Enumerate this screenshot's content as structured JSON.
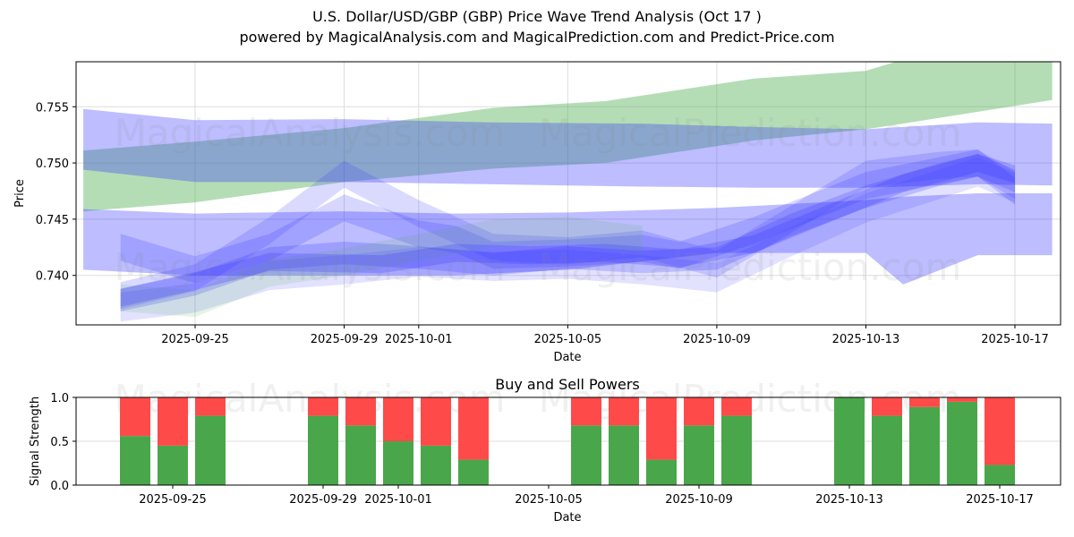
{
  "header": {
    "title": "U.S. Dollar/USD/GBP (GBP) Price Wave Trend Analysis (Oct 17 )",
    "subtitle": "powered by MagicalAnalysis.com and MagicalPrediction.com and Predict-Price.com"
  },
  "watermarks": [
    "MagicalAnalysis.com",
    "MagicalPrediction.com"
  ],
  "colors": {
    "green_band": "#4caf50",
    "blue_band": "#3333ff",
    "buy": "#4aa64a",
    "sell": "#ff4a4a",
    "grid": "#dddddd"
  },
  "chart_data": [
    {
      "type": "area",
      "title": "",
      "xlabel": "Date",
      "ylabel": "Price",
      "ylim": [
        0.7356,
        0.759
      ],
      "xlim": [
        "2025-09-22",
        "2025-10-18"
      ],
      "grid": true,
      "x_ticks": [
        "2025-09-25",
        "2025-09-29",
        "2025-10-01",
        "2025-10-05",
        "2025-10-09",
        "2025-10-13",
        "2025-10-17"
      ],
      "y_ticks": [
        0.74,
        0.745,
        0.75,
        0.755
      ],
      "y_tick_labels": [
        "0.740",
        "0.745",
        "0.750",
        "0.755"
      ],
      "bands": [
        {
          "name": "green-trend-band",
          "color": "green",
          "opacity": 0.42,
          "x": [
            "2025-09-22",
            "2025-09-25",
            "2025-09-29",
            "2025-10-03",
            "2025-10-06",
            "2025-10-10",
            "2025-10-13",
            "2025-10-14",
            "2025-10-18"
          ],
          "upper": [
            0.7511,
            0.7519,
            0.7531,
            0.7549,
            0.7555,
            0.7575,
            0.7582,
            0.7592,
            0.759
          ],
          "lower": [
            0.7457,
            0.7465,
            0.7483,
            0.7495,
            0.75,
            0.752,
            0.753,
            0.7535,
            0.7556
          ]
        },
        {
          "name": "blue-upper-band",
          "color": "blue",
          "opacity": 0.32,
          "x": [
            "2025-09-22",
            "2025-09-25",
            "2025-09-29",
            "2025-10-03",
            "2025-10-07",
            "2025-10-10",
            "2025-10-13",
            "2025-10-16",
            "2025-10-18"
          ],
          "upper": [
            0.7548,
            0.7538,
            0.7539,
            0.7536,
            0.7535,
            0.7532,
            0.753,
            0.7536,
            0.7535
          ],
          "lower": [
            0.7494,
            0.7483,
            0.7483,
            0.7481,
            0.7479,
            0.7478,
            0.7478,
            0.7481,
            0.748
          ]
        },
        {
          "name": "blue-lower-band",
          "color": "blue",
          "opacity": 0.32,
          "x": [
            "2025-09-22",
            "2025-09-25",
            "2025-09-29",
            "2025-10-02",
            "2025-10-05",
            "2025-10-09",
            "2025-10-13",
            "2025-10-14",
            "2025-10-16",
            "2025-10-18"
          ],
          "upper": [
            0.7459,
            0.7455,
            0.7457,
            0.7455,
            0.7456,
            0.746,
            0.7467,
            0.747,
            0.7473,
            0.7473
          ],
          "lower": [
            0.7405,
            0.74,
            0.74,
            0.74,
            0.7405,
            0.742,
            0.742,
            0.7392,
            0.7418,
            0.7418
          ]
        },
        {
          "name": "wave-band-1",
          "color": "blue",
          "opacity": 0.22,
          "x": [
            "2025-09-23",
            "2025-09-25",
            "2025-09-27",
            "2025-09-29",
            "2025-10-01",
            "2025-10-03",
            "2025-10-05",
            "2025-10-07",
            "2025-10-09",
            "2025-10-11",
            "2025-10-13",
            "2025-10-15",
            "2025-10-16",
            "2025-10-17"
          ],
          "center": [
            0.7378,
            0.7392,
            0.7415,
            0.742,
            0.7416,
            0.741,
            0.7416,
            0.7412,
            0.7415,
            0.7445,
            0.747,
            0.749,
            0.7498,
            0.7484
          ],
          "halfwidth": [
            0.001,
            0.001,
            0.001,
            0.001,
            0.001,
            0.001,
            0.001,
            0.001,
            0.001,
            0.001,
            0.001,
            0.001,
            0.001,
            0.001
          ]
        },
        {
          "name": "wave-band-2",
          "color": "blue",
          "opacity": 0.2,
          "x": [
            "2025-09-23",
            "2025-09-25",
            "2025-09-27",
            "2025-09-29",
            "2025-10-01",
            "2025-10-02",
            "2025-10-03",
            "2025-10-05",
            "2025-10-07",
            "2025-10-08",
            "2025-10-10",
            "2025-10-13",
            "2025-10-16",
            "2025-10-17"
          ],
          "center": [
            0.7425,
            0.7405,
            0.7425,
            0.746,
            0.7437,
            0.7432,
            0.7418,
            0.742,
            0.7424,
            0.7418,
            0.744,
            0.748,
            0.75,
            0.7475
          ],
          "halfwidth": [
            0.0012,
            0.0012,
            0.0012,
            0.0012,
            0.0012,
            0.0012,
            0.0012,
            0.0012,
            0.0012,
            0.0012,
            0.0012,
            0.0012,
            0.0012,
            0.0012
          ]
        },
        {
          "name": "wave-band-3",
          "color": "blue",
          "opacity": 0.18,
          "x": [
            "2025-09-23",
            "2025-09-25",
            "2025-09-27",
            "2025-09-29",
            "2025-10-01",
            "2025-10-03",
            "2025-10-05",
            "2025-10-07",
            "2025-10-09",
            "2025-10-11",
            "2025-10-13",
            "2025-10-15",
            "2025-10-16",
            "2025-10-17"
          ],
          "center": [
            0.7382,
            0.7398,
            0.744,
            0.749,
            0.7455,
            0.7425,
            0.7422,
            0.7428,
            0.741,
            0.745,
            0.749,
            0.7498,
            0.75,
            0.748
          ],
          "halfwidth": [
            0.0012,
            0.0012,
            0.0012,
            0.0012,
            0.0012,
            0.0012,
            0.0012,
            0.0012,
            0.0012,
            0.0012,
            0.0012,
            0.0012,
            0.0012,
            0.0012
          ]
        },
        {
          "name": "wave-band-4",
          "color": "blue",
          "opacity": 0.14,
          "x": [
            "2025-09-23",
            "2025-09-25",
            "2025-09-27",
            "2025-09-29",
            "2025-10-01",
            "2025-10-03",
            "2025-10-05",
            "2025-10-07",
            "2025-10-09",
            "2025-10-11",
            "2025-10-13",
            "2025-10-16",
            "2025-10-17"
          ],
          "center": [
            0.7372,
            0.738,
            0.74,
            0.7405,
            0.7412,
            0.7408,
            0.741,
            0.7405,
            0.7398,
            0.743,
            0.746,
            0.7492,
            0.7478
          ],
          "halfwidth": [
            0.0013,
            0.0013,
            0.0013,
            0.0013,
            0.0013,
            0.0013,
            0.0013,
            0.0013,
            0.0013,
            0.0013,
            0.0013,
            0.0013,
            0.0013
          ]
        },
        {
          "name": "wave-band-green",
          "color": "green",
          "opacity": 0.14,
          "x": [
            "2025-09-23",
            "2025-09-25",
            "2025-09-27",
            "2025-09-29",
            "2025-10-01",
            "2025-10-03",
            "2025-10-05",
            "2025-10-07"
          ],
          "center": [
            0.738,
            0.7375,
            0.7402,
            0.7412,
            0.7425,
            0.7438,
            0.744,
            0.7432
          ],
          "halfwidth": [
            0.0012,
            0.0012,
            0.0012,
            0.0012,
            0.0012,
            0.0012,
            0.0012,
            0.0012
          ]
        },
        {
          "name": "wave-band-5",
          "color": "blue",
          "opacity": 0.24,
          "x": [
            "2025-09-23",
            "2025-09-25",
            "2025-09-27",
            "2025-09-30",
            "2025-10-02",
            "2025-10-04",
            "2025-10-06",
            "2025-10-08",
            "2025-10-10",
            "2025-10-12",
            "2025-10-14",
            "2025-10-16",
            "2025-10-17"
          ],
          "center": [
            0.738,
            0.7395,
            0.7412,
            0.741,
            0.742,
            0.7418,
            0.742,
            0.7415,
            0.7428,
            0.7455,
            0.7482,
            0.75,
            0.749
          ],
          "halfwidth": [
            0.0008,
            0.0008,
            0.0008,
            0.0008,
            0.0008,
            0.0008,
            0.0008,
            0.0008,
            0.0008,
            0.0008,
            0.0008,
            0.0008,
            0.0008
          ]
        }
      ]
    },
    {
      "type": "bar",
      "title": "Buy and Sell Powers",
      "xlabel": "Date",
      "ylabel": "Signal Strength",
      "ylim": [
        0,
        1
      ],
      "xlim": [
        "2025-09-22",
        "2025-10-18"
      ],
      "grid": true,
      "x_ticks": [
        "2025-09-25",
        "2025-09-29",
        "2025-10-01",
        "2025-10-05",
        "2025-10-09",
        "2025-10-13",
        "2025-10-17"
      ],
      "y_ticks": [
        0.0,
        0.5,
        1.0
      ],
      "y_tick_labels": [
        "0.0",
        "0.5",
        "1.0"
      ],
      "categories": [
        "2025-09-24",
        "2025-09-25",
        "2025-09-26",
        "2025-09-29",
        "2025-09-30",
        "2025-10-01",
        "2025-10-02",
        "2025-10-03",
        "2025-10-06",
        "2025-10-07",
        "2025-10-08",
        "2025-10-09",
        "2025-10-10",
        "2025-10-13",
        "2025-10-14",
        "2025-10-15",
        "2025-10-16",
        "2025-10-17"
      ],
      "series": [
        {
          "name": "Buy",
          "color": "buy",
          "values": [
            0.56,
            0.45,
            0.79,
            0.79,
            0.68,
            0.5,
            0.45,
            0.29,
            0.68,
            0.68,
            0.29,
            0.68,
            0.79,
            1.0,
            0.79,
            0.89,
            0.95,
            0.23
          ]
        },
        {
          "name": "Sell",
          "color": "sell",
          "values": [
            0.44,
            0.55,
            0.21,
            0.21,
            0.32,
            0.5,
            0.55,
            0.71,
            0.32,
            0.32,
            0.71,
            0.32,
            0.21,
            0.0,
            0.21,
            0.11,
            0.05,
            0.77
          ]
        }
      ]
    }
  ]
}
